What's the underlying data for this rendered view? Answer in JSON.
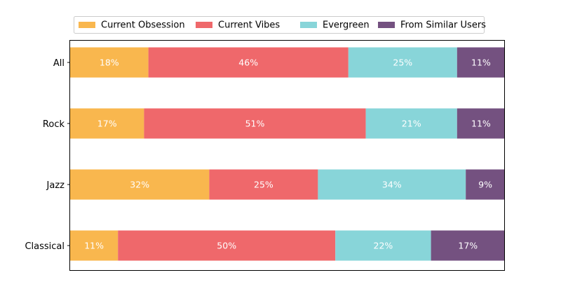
{
  "chart_data": {
    "type": "bar",
    "orientation": "horizontal",
    "stacked": true,
    "title": "",
    "xlabel": "",
    "ylabel": "",
    "xlim": [
      0,
      100
    ],
    "x_ticks_shown": false,
    "grid": false,
    "legend": {
      "position": "top",
      "columns": 4
    },
    "categories": [
      "All",
      "Rock",
      "Jazz",
      "Classical"
    ],
    "series": [
      {
        "name": "Current Obsession",
        "color": "#F9B74E",
        "values": [
          18,
          17,
          32,
          11
        ]
      },
      {
        "name": "Current Vibes",
        "color": "#EF686B",
        "values": [
          46,
          51,
          25,
          50
        ]
      },
      {
        "name": "Evergreen",
        "color": "#88D5D9",
        "values": [
          25,
          21,
          34,
          22
        ]
      },
      {
        "name": "From Similar Users",
        "color": "#745180",
        "values": [
          11,
          11,
          9,
          17
        ]
      }
    ],
    "data_label_format": "{v}%",
    "data_label_color": "#ffffff"
  }
}
